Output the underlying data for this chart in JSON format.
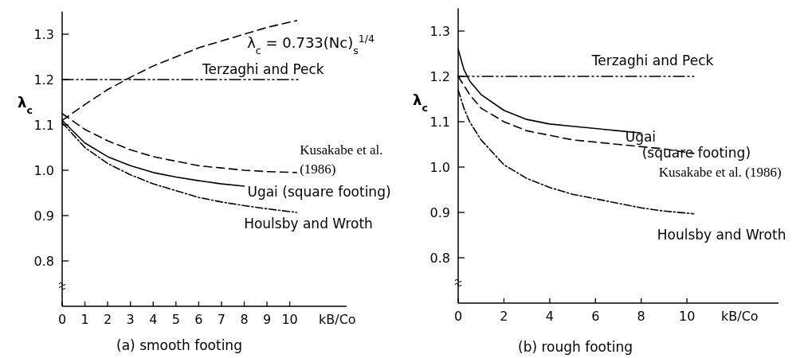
{
  "chart_data": [
    {
      "type": "line",
      "title": "(a) smooth footing",
      "xlabel": "kB/Co",
      "ylabel": "λ$_{c}$",
      "xlim": [
        0,
        12.5
      ],
      "ylim": [
        0.7,
        1.35
      ],
      "xticks": [
        0,
        1,
        2,
        3,
        4,
        5,
        6,
        7,
        8,
        9,
        10
      ],
      "yticks": [
        0.8,
        0.9,
        {
          "value": 1,
          "label": "1.0"
        },
        1.1,
        1.2,
        1.3
      ],
      "series": [
        {
          "name": "λ$_{c}$ = 0.733(Nc)$_{s}$$^{1/4}$",
          "color": "#000000",
          "line_style": "dashed",
          "x": [
            0,
            1,
            2,
            3,
            4,
            5,
            6,
            7,
            8,
            9,
            10.3
          ],
          "values": [
            1.11,
            1.145,
            1.178,
            1.205,
            1.23,
            1.25,
            1.27,
            1.285,
            1.3,
            1.315,
            1.33
          ]
        },
        {
          "name": "Terzaghi and Peck",
          "color": "#000000",
          "line_style": "dashdotdot",
          "x": [
            0,
            10.4
          ],
          "values": [
            1.2,
            1.2
          ]
        },
        {
          "name": "Kusakabe et al. (1986)",
          "color": "#000000",
          "line_style": "dashed",
          "x": [
            0,
            1,
            2,
            3,
            4,
            5,
            6,
            7,
            8,
            9,
            10.3
          ],
          "values": [
            1.125,
            1.09,
            1.065,
            1.045,
            1.03,
            1.02,
            1.01,
            1.005,
            1.0,
            0.997,
            0.995
          ]
        },
        {
          "name": "Ugai (square footing)",
          "color": "#000000",
          "line_style": "solid",
          "x": [
            0,
            1,
            2,
            3,
            4,
            5,
            6,
            7,
            8
          ],
          "values": [
            1.11,
            1.06,
            1.03,
            1.01,
            0.995,
            0.985,
            0.977,
            0.97,
            0.965
          ]
        },
        {
          "name": "Houlsby and Wroth",
          "color": "#000000",
          "line_style": "dashdot",
          "x": [
            0,
            1,
            2,
            3,
            4,
            5,
            6,
            7,
            8,
            9,
            10.3
          ],
          "values": [
            1.105,
            1.05,
            1.015,
            0.99,
            0.97,
            0.955,
            0.94,
            0.93,
            0.922,
            0.915,
            0.907
          ]
        }
      ]
    },
    {
      "type": "line",
      "title": "(b) rough footing",
      "xlabel": "kB/Co",
      "ylabel": "λ$_{c}$",
      "xlim": [
        0,
        14
      ],
      "ylim": [
        0.7,
        1.35
      ],
      "xticks": [
        0,
        2,
        4,
        6,
        8,
        10
      ],
      "yticks": [
        0.8,
        0.9,
        {
          "value": 1,
          "label": "1.0"
        },
        1.1,
        1.2,
        1.3
      ],
      "series": [
        {
          "name": "Terzaghi and Peck",
          "color": "#000000",
          "line_style": "dashdotdot",
          "x": [
            0,
            10.3
          ],
          "values": [
            1.2,
            1.2
          ]
        },
        {
          "name": "Ugai (square footing)",
          "color": "#000000",
          "line_style": "solid",
          "x": [
            0,
            0.25,
            0.5,
            1,
            2,
            3,
            4,
            5,
            6,
            7,
            8
          ],
          "values": [
            1.26,
            1.215,
            1.19,
            1.16,
            1.125,
            1.105,
            1.095,
            1.09,
            1.085,
            1.08,
            1.075
          ]
        },
        {
          "name": "Kusakabe et al. (1986)",
          "color": "#000000",
          "line_style": "dashed",
          "x": [
            0,
            0.5,
            1,
            2,
            3,
            4,
            5,
            6,
            7,
            8,
            9,
            10.3
          ],
          "values": [
            1.2,
            1.16,
            1.13,
            1.1,
            1.08,
            1.07,
            1.06,
            1.055,
            1.05,
            1.045,
            1.04,
            1.03
          ]
        },
        {
          "name": "Houlsby and Wroth",
          "color": "#000000",
          "line_style": "dashdot",
          "x": [
            0,
            0.25,
            0.5,
            1,
            2,
            3,
            4,
            5,
            6,
            7,
            8,
            9,
            10.3
          ],
          "values": [
            1.17,
            1.13,
            1.1,
            1.06,
            1.005,
            0.975,
            0.955,
            0.94,
            0.93,
            0.92,
            0.91,
            0.903,
            0.897
          ]
        }
      ]
    }
  ]
}
